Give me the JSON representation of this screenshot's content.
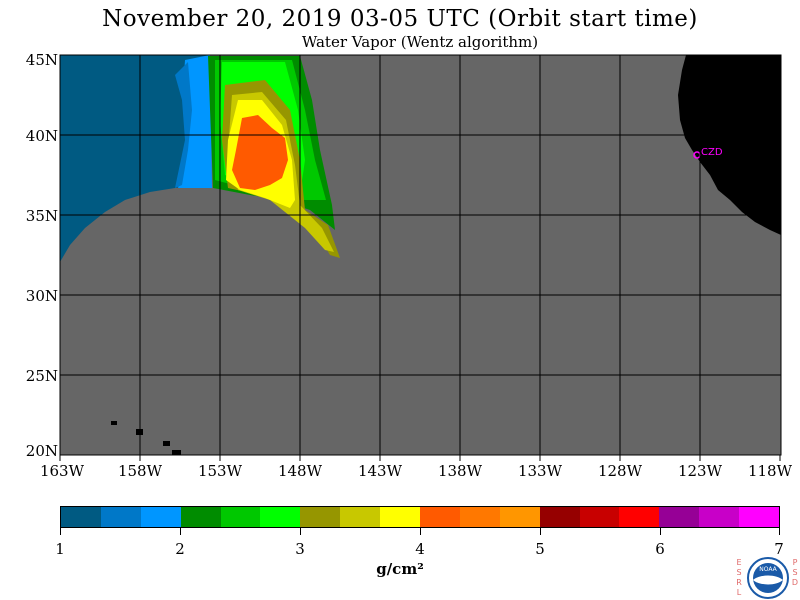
{
  "title": "November 20, 2019  03-05 UTC  (Orbit start time)",
  "subtitle": "Water Vapor (Wentz algorithm)",
  "map": {
    "lat_labels": [
      "45N",
      "40N",
      "35N",
      "30N",
      "25N",
      "20N"
    ],
    "lon_labels": [
      "163W",
      "158W",
      "153W",
      "148W",
      "143W",
      "138W",
      "133W",
      "128W",
      "123W",
      "118W"
    ],
    "site_label": "CZD",
    "colors": {
      "ocean_no_data": "#666666",
      "land": "#000000",
      "grid": "#000000",
      "site_marker": "#ff00ff"
    }
  },
  "colorbar": {
    "tick_labels": [
      "1",
      "2",
      "3",
      "4",
      "5",
      "6",
      "7"
    ],
    "colors": [
      "#005a82",
      "#0078c8",
      "#0096ff",
      "#008c00",
      "#00c800",
      "#00ff00",
      "#969600",
      "#c8c800",
      "#ffff00",
      "#ff5a00",
      "#ff7800",
      "#ff9600",
      "#960000",
      "#c80000",
      "#ff0000",
      "#960096",
      "#c800c8",
      "#ff00ff"
    ],
    "unit": "g/cm²"
  },
  "logo": {
    "left_letters": [
      "E",
      "S",
      "R",
      "L"
    ],
    "right_letters": [
      "P",
      "S",
      "D"
    ],
    "badge_text": "NOAA",
    "icon": "noaa-logo-icon"
  }
}
